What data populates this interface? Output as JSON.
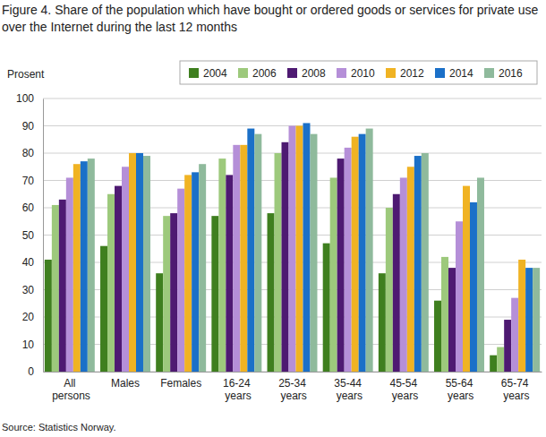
{
  "chart_data": {
    "type": "bar",
    "title": "Figure 4. Share of the population which have bought or ordered goods or services for private use over the Internet during the last 12 months",
    "y_label": "Prosent",
    "source": "Source: Statistics Norway.",
    "categories": [
      "All persons",
      "Males",
      "Females",
      "16-24 years",
      "25-34 years",
      "35-44 years",
      "45-54 years",
      "55-64 years",
      "65-74 years"
    ],
    "series": [
      {
        "name": "2004",
        "color": "#3f7f1f",
        "values": [
          41,
          46,
          36,
          57,
          58,
          47,
          36,
          26,
          6
        ]
      },
      {
        "name": "2006",
        "color": "#9dc97c",
        "values": [
          61,
          65,
          57,
          78,
          80,
          71,
          60,
          42,
          9
        ]
      },
      {
        "name": "2008",
        "color": "#4e1a72",
        "values": [
          63,
          68,
          58,
          72,
          84,
          78,
          65,
          38,
          19
        ]
      },
      {
        "name": "2010",
        "color": "#b58fd8",
        "values": [
          71,
          75,
          67,
          83,
          90,
          82,
          71,
          55,
          27
        ]
      },
      {
        "name": "2012",
        "color": "#f0b323",
        "values": [
          76,
          80,
          72,
          83,
          90,
          86,
          75,
          68,
          41
        ]
      },
      {
        "name": "2014",
        "color": "#1b70c8",
        "values": [
          77,
          80,
          73,
          89,
          91,
          87,
          79,
          62,
          38
        ]
      },
      {
        "name": "2016",
        "color": "#8fba9c",
        "values": [
          78,
          79,
          76,
          87,
          87,
          89,
          80,
          71,
          38
        ]
      }
    ],
    "ylim": [
      0,
      100
    ],
    "yticks": [
      0,
      10,
      20,
      30,
      40,
      50,
      60,
      70,
      80,
      90,
      100
    ],
    "grid": true,
    "legend": "top"
  }
}
